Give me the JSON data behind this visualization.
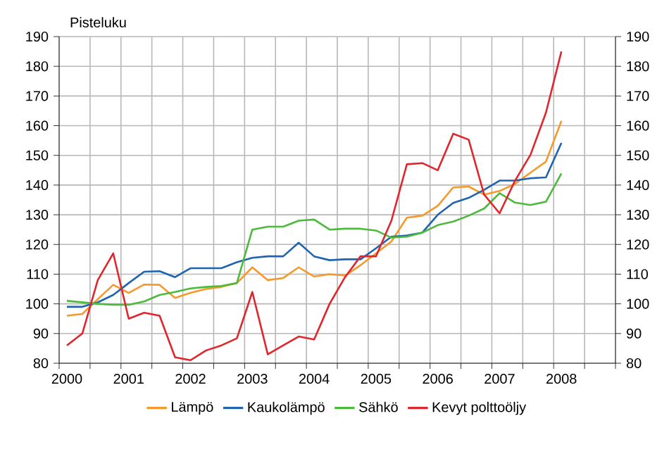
{
  "chart_data": {
    "type": "line",
    "ylabel": "Pisteluku",
    "categories": [
      "2000",
      null,
      null,
      null,
      "2001",
      null,
      null,
      null,
      "2002",
      null,
      null,
      null,
      "2003",
      null,
      null,
      null,
      "2004",
      null,
      null,
      null,
      "2005",
      null,
      null,
      null,
      "2006",
      null,
      null,
      null,
      "2007",
      null,
      null,
      null,
      "2008",
      null,
      null,
      null
    ],
    "series": [
      {
        "name": "Lämpö",
        "color": "#f7982d",
        "values": [
          96,
          96.6,
          101.6,
          106.4,
          103.7,
          106.5,
          106.4,
          102,
          103.7,
          105,
          105.7,
          107,
          112.3,
          108,
          108.7,
          112.3,
          109.2,
          110,
          109.5,
          113,
          117,
          121,
          129,
          129.7,
          133,
          139.2,
          139.5,
          136.8,
          138,
          140.4,
          144.2,
          147.9,
          161.6,
          null,
          null,
          null
        ]
      },
      {
        "name": "Kaukolämpö",
        "color": "#1f64b0",
        "values": [
          99,
          99,
          100.5,
          103,
          107,
          110.8,
          111,
          109,
          112,
          112,
          112,
          114,
          115.5,
          116,
          116,
          120.6,
          116,
          114.7,
          115,
          115,
          118.7,
          122.6,
          123,
          124,
          130,
          134,
          135.7,
          138.4,
          141.5,
          141.5,
          142.3,
          142.6,
          154.2,
          null,
          null,
          null
        ]
      },
      {
        "name": "Sähkö",
        "color": "#4cbb3c",
        "values": [
          101,
          100.5,
          100,
          99.7,
          99.7,
          100.8,
          103,
          104,
          105.2,
          105.7,
          106,
          107,
          125,
          126,
          126,
          128,
          128.4,
          125,
          125.3,
          125.3,
          124.7,
          122.3,
          122.6,
          124,
          126.5,
          127.7,
          129.7,
          132.1,
          137.3,
          134.1,
          133.3,
          134.4,
          143.9,
          null,
          null,
          null
        ]
      },
      {
        "name": "Kevyt polttoöljy",
        "color": "#e0262c",
        "values": [
          86,
          90,
          108,
          117,
          95,
          97,
          96,
          82,
          81,
          84.3,
          86,
          88.4,
          104,
          83,
          86,
          89,
          88,
          100,
          109,
          116,
          116,
          128,
          147,
          147.4,
          145,
          157.3,
          155.3,
          136.8,
          130.5,
          141.5,
          150.2,
          164.4,
          185,
          null,
          null,
          null
        ]
      }
    ],
    "ylim": [
      80,
      190
    ],
    "yticks": [
      80,
      90,
      100,
      110,
      120,
      130,
      140,
      150,
      160,
      170,
      180,
      190
    ],
    "y2lim": [
      80,
      190
    ],
    "y2ticks": [
      80,
      90,
      100,
      110,
      120,
      130,
      140,
      150,
      160,
      170,
      180,
      190
    ],
    "grid": true,
    "legend": "bottom",
    "marker": "none",
    "line_style": "solid"
  }
}
